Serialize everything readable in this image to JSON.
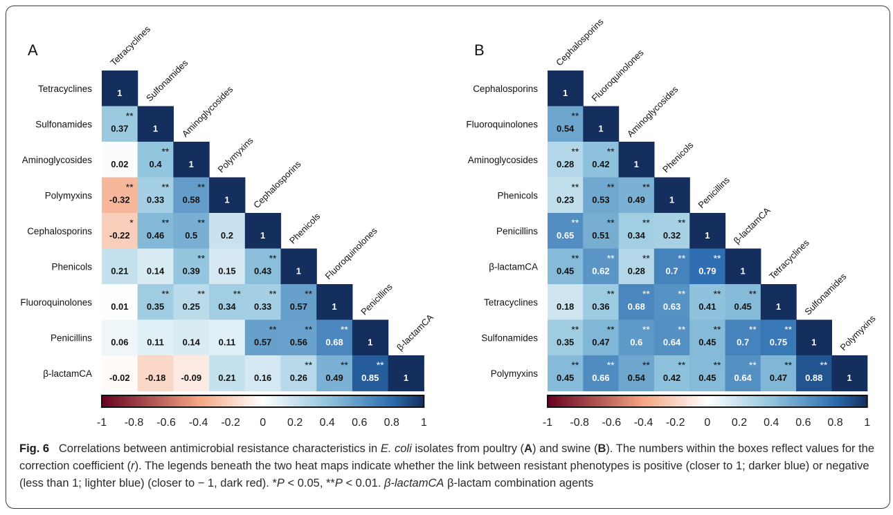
{
  "chart_data": [
    {
      "type": "heatmap",
      "panel_label": "A",
      "labels": [
        "Tetracyclines",
        "Sulfonamides",
        "Aminoglycosides",
        "Polymyxins",
        "Cephalosporins",
        "Phenicols",
        "Fluoroquinolones",
        "Penicillins",
        "β-lactamCA"
      ],
      "values": [
        [
          1
        ],
        [
          0.37,
          1
        ],
        [
          0.02,
          0.4,
          1
        ],
        [
          -0.32,
          0.33,
          0.58,
          1
        ],
        [
          -0.22,
          0.46,
          0.5,
          0.2,
          1
        ],
        [
          0.21,
          0.14,
          0.39,
          0.15,
          0.43,
          1
        ],
        [
          0.01,
          0.35,
          0.25,
          0.34,
          0.33,
          0.57,
          1
        ],
        [
          0.06,
          0.11,
          0.14,
          0.11,
          0.57,
          0.56,
          0.68,
          1
        ],
        [
          -0.02,
          -0.18,
          -0.09,
          0.21,
          0.16,
          0.26,
          0.49,
          0.85,
          1
        ]
      ],
      "significance": [
        [
          ""
        ],
        [
          "**",
          ""
        ],
        [
          "",
          "**",
          ""
        ],
        [
          "**",
          "**",
          "**",
          ""
        ],
        [
          "*",
          "**",
          "**",
          "",
          ""
        ],
        [
          "",
          "",
          "**",
          "",
          "**",
          ""
        ],
        [
          "",
          "**",
          "**",
          "**",
          "**",
          "**",
          ""
        ],
        [
          "",
          "",
          "",
          "",
          "**",
          "**",
          "**",
          ""
        ],
        [
          "",
          "",
          "",
          "",
          "",
          "**",
          "**",
          "**",
          ""
        ]
      ],
      "colorbar": {
        "range": [
          -1,
          1
        ],
        "ticks": [
          "-1",
          "-0.8",
          "-0.6",
          "-0.4",
          "-0.2",
          "0",
          "0.2",
          "0.4",
          "0.6",
          "0.8",
          "1"
        ]
      }
    },
    {
      "type": "heatmap",
      "panel_label": "B",
      "labels": [
        "Cephalosporins",
        "Fluoroquinolones",
        "Aminoglycosides",
        "Phenicols",
        "Penicillins",
        "β-lactamCA",
        "Tetracyclines",
        "Sulfonamides",
        "Polymyxins"
      ],
      "values": [
        [
          1
        ],
        [
          0.54,
          1
        ],
        [
          0.28,
          0.42,
          1
        ],
        [
          0.23,
          0.53,
          0.49,
          1
        ],
        [
          0.65,
          0.51,
          0.34,
          0.32,
          1
        ],
        [
          0.45,
          0.62,
          0.28,
          0.7,
          0.79,
          1
        ],
        [
          0.18,
          0.36,
          0.68,
          0.63,
          0.41,
          0.45,
          1
        ],
        [
          0.35,
          0.47,
          0.6,
          0.64,
          0.45,
          0.7,
          0.75,
          1
        ],
        [
          0.45,
          0.66,
          0.54,
          0.42,
          0.45,
          0.64,
          0.47,
          0.88,
          1
        ]
      ],
      "significance": [
        [
          ""
        ],
        [
          "**",
          ""
        ],
        [
          "**",
          "**",
          ""
        ],
        [
          "**",
          "**",
          "**",
          ""
        ],
        [
          "**",
          "**",
          "**",
          "**",
          ""
        ],
        [
          "**",
          "**",
          "**",
          "**",
          "**",
          ""
        ],
        [
          "",
          "**",
          "**",
          "**",
          "**",
          "**",
          ""
        ],
        [
          "**",
          "**",
          "**",
          "**",
          "**",
          "**",
          "**",
          ""
        ],
        [
          "**",
          "**",
          "**",
          "**",
          "**",
          "**",
          "**",
          "**",
          ""
        ]
      ],
      "colorbar": {
        "range": [
          -1,
          1
        ],
        "ticks": [
          "-1",
          "-0.8",
          "-0.6",
          "-0.4",
          "-0.2",
          "0",
          "0.2",
          "0.4",
          "0.6",
          "0.8",
          "1"
        ]
      }
    }
  ],
  "colors": {
    "negative_end": "#67001f",
    "negative_mid": "#f4a582",
    "zero": "#ffffff",
    "positive_mid": "#92c5de",
    "positive_strong": "#2c6db0",
    "positive_end": "#142e5d"
  },
  "caption": {
    "fig_label": "Fig. 6",
    "parts": [
      "Correlations between antimicrobial resistance characteristics in ",
      "E. coli",
      " isolates from poultry (",
      "A",
      ") and swine (",
      "B",
      "). The numbers within the boxes reflect values for the correction coefficient (",
      "r",
      "). The legends beneath the two heat maps indicate whether the link between resistant phenotypes is positive (closer to 1; darker blue) or negative (less than 1; lighter blue) (closer to − 1, dark red). *",
      "P",
      " < 0.05, **",
      "P",
      " < 0.01. ",
      "β-lactamCA",
      " β-lactam combination agents"
    ]
  }
}
